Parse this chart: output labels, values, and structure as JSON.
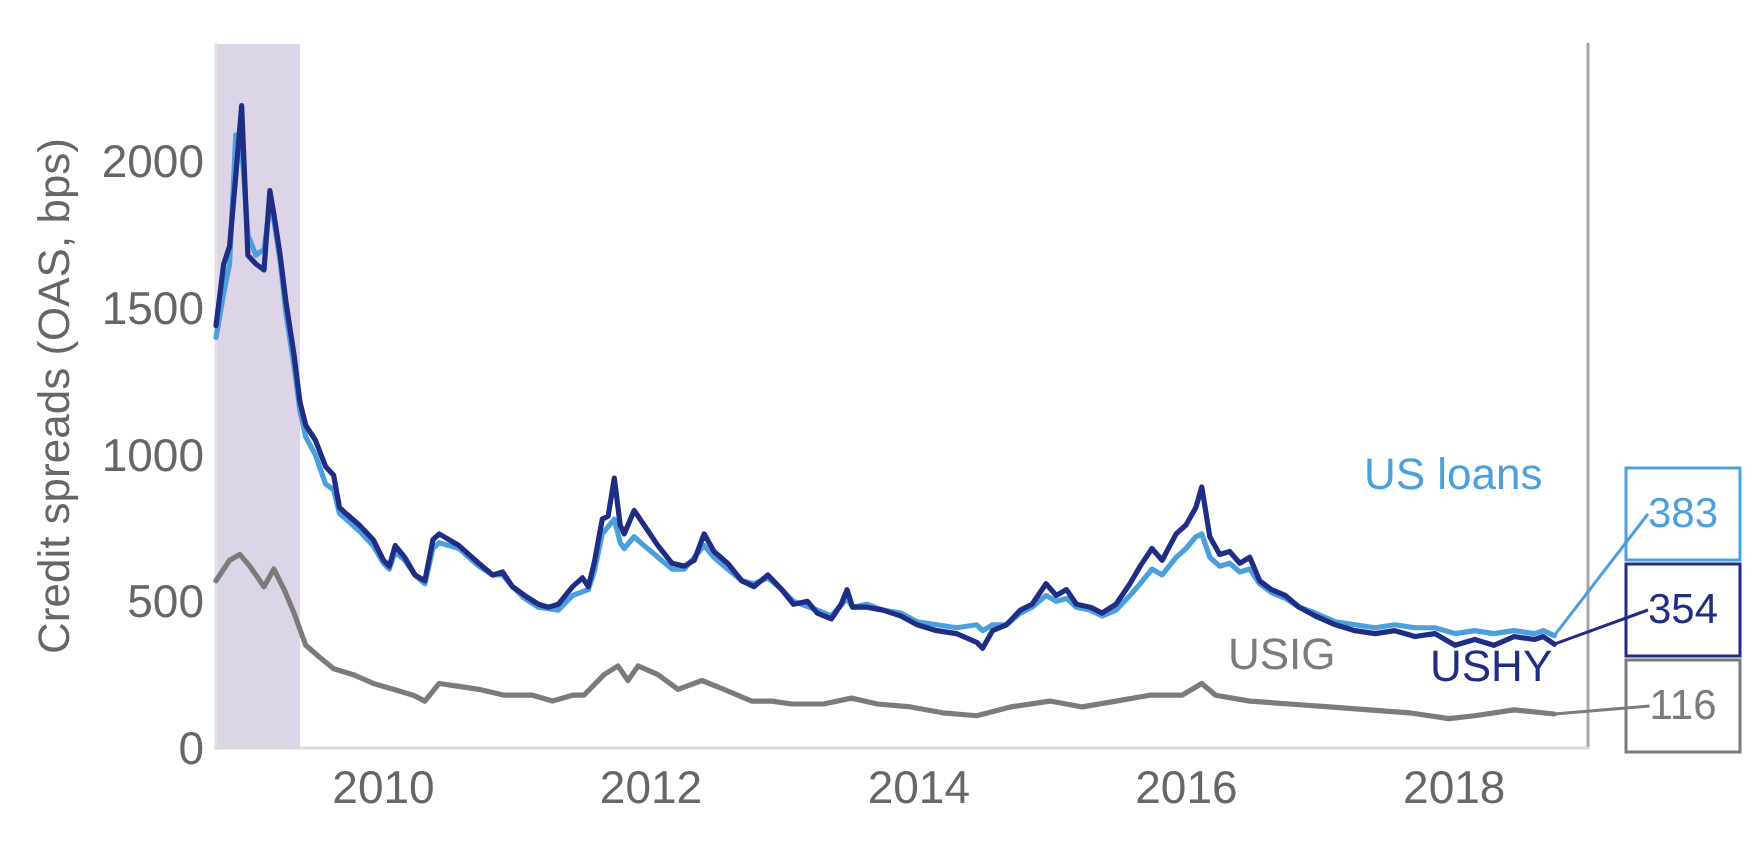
{
  "chart_data": {
    "type": "line",
    "ylabel": "Credit spreads (OAS, bps)",
    "xlim": [
      "2008-10-01",
      "2019-01-01"
    ],
    "xticks": [
      "2010",
      "2012",
      "2014",
      "2016",
      "2018"
    ],
    "ylim": [
      0,
      2400
    ],
    "yticks": [
      0,
      500,
      1000,
      1500,
      2000
    ],
    "bands": [
      {
        "axis": "x",
        "from": "2008-10-01",
        "to": "2009-05-18",
        "color": "#ddd5e7"
      }
    ],
    "series": [
      {
        "name": "US loans",
        "color": "#4a9fdc",
        "x": [
          "2008-10-01",
          "2008-10-22",
          "2008-11-07",
          "2008-11-24",
          "2008-12-10",
          "2008-12-27",
          "2009-01-18",
          "2009-02-09",
          "2009-02-25",
          "2009-03-08",
          "2009-03-25",
          "2009-04-10",
          "2009-05-02",
          "2009-05-18",
          "2009-06-03",
          "2009-06-29",
          "2009-07-27",
          "2009-08-18",
          "2009-09-03",
          "2009-10-27",
          "2009-12-04",
          "2010-01-01",
          "2010-01-17",
          "2010-02-02",
          "2010-02-28",
          "2010-03-28",
          "2010-04-24",
          "2010-05-16",
          "2010-06-02",
          "2010-07-26",
          "2010-08-22",
          "2010-09-18",
          "2010-10-26",
          "2010-11-22",
          "2010-12-19",
          "2011-01-21",
          "2011-02-28",
          "2011-04-23",
          "2011-06-01",
          "2011-07-14",
          "2011-07-30",
          "2011-08-21",
          "2011-09-23",
          "2011-10-09",
          "2011-10-20",
          "2011-11-16",
          "2011-12-13",
          "2012-01-20",
          "2012-02-27",
          "2012-04-01",
          "2012-05-25",
          "2012-06-21",
          "2012-07-28",
          "2012-09-05",
          "2012-10-08",
          "2012-11-15",
          "2012-12-23",
          "2013-01-24",
          "2013-03-30",
          "2013-05-07",
          "2013-06-19",
          "2013-07-04",
          "2013-08-12",
          "2013-09-25",
          "2013-11-13",
          "2013-12-27",
          "2014-02-19",
          "2014-04-14",
          "2014-06-08",
          "2014-06-24",
          "2014-07-21",
          "2014-08-28",
          "2014-10-05",
          "2014-11-06",
          "2014-12-14",
          "2015-01-11",
          "2015-02-08",
          "2015-03-07",
          "2015-04-14",
          "2015-05-16",
          "2015-06-23",
          "2015-07-31",
          "2015-08-28",
          "2015-09-29",
          "2015-10-27",
          "2015-12-04",
          "2015-12-31",
          "2016-01-27",
          "2016-02-12",
          "2016-03-05",
          "2016-04-01",
          "2016-04-28",
          "2016-05-26",
          "2016-06-22",
          "2016-07-19",
          "2016-08-20",
          "2016-09-27",
          "2016-11-04",
          "2016-12-18",
          "2017-02-11",
          "2017-04-05",
          "2017-05-30",
          "2017-07-23",
          "2017-09-16",
          "2017-11-09",
          "2018-01-03",
          "2018-02-26",
          "2018-04-19",
          "2018-06-13",
          "2018-08-08",
          "2018-09-01",
          "2018-10-01"
        ],
        "values": [
          1400,
          1550,
          1650,
          2090,
          2050,
          1750,
          1680,
          1700,
          1850,
          1800,
          1660,
          1480,
          1300,
          1150,
          1060,
          1000,
          900,
          880,
          800,
          740,
          690,
          630,
          610,
          670,
          640,
          590,
          560,
          680,
          700,
          680,
          650,
          620,
          590,
          590,
          550,
          510,
          480,
          470,
          520,
          540,
          600,
          730,
          780,
          700,
          680,
          720,
          690,
          650,
          610,
          610,
          690,
          650,
          610,
          570,
          560,
          580,
          540,
          500,
          470,
          450,
          510,
          480,
          490,
          470,
          460,
          430,
          420,
          410,
          420,
          400,
          420,
          420,
          460,
          480,
          520,
          500,
          510,
          480,
          470,
          450,
          470,
          520,
          560,
          610,
          590,
          650,
          680,
          720,
          730,
          650,
          620,
          630,
          600,
          610,
          560,
          530,
          510,
          480,
          460,
          430,
          420,
          410,
          420,
          410,
          410,
          390,
          400,
          390,
          400,
          390,
          400,
          383
        ],
        "value_labels": [
          null,
          null,
          null,
          null,
          null,
          null,
          null,
          null,
          null,
          null,
          null,
          null,
          null,
          null,
          null,
          null,
          null,
          null,
          null,
          null,
          null,
          null,
          null,
          null,
          null,
          null,
          null,
          null,
          null,
          null,
          null,
          null,
          null,
          null,
          null,
          null,
          null,
          null,
          null,
          null,
          null,
          null,
          null,
          null,
          null,
          null,
          null,
          null,
          null,
          null,
          null,
          null,
          null,
          null,
          null,
          null,
          null,
          null,
          null,
          null,
          null,
          null,
          null,
          null,
          null,
          null,
          null,
          null,
          null,
          null,
          null,
          null,
          null,
          null,
          null,
          null,
          null,
          null,
          null,
          null,
          null,
          null,
          null,
          null,
          null,
          null,
          null,
          null,
          null,
          null,
          null,
          null,
          null,
          null,
          null,
          null,
          null,
          null,
          null,
          null,
          null,
          null,
          null,
          null,
          null,
          null,
          null,
          null,
          null,
          null,
          null,
          "383"
        ]
      },
      {
        "name": "USHY",
        "color": "#1f2d84",
        "x": [
          "2008-10-01",
          "2008-10-22",
          "2008-11-07",
          "2008-11-24",
          "2008-12-10",
          "2008-12-27",
          "2009-01-18",
          "2009-02-09",
          "2009-02-25",
          "2009-03-08",
          "2009-03-25",
          "2009-04-10",
          "2009-05-02",
          "2009-05-18",
          "2009-06-03",
          "2009-06-29",
          "2009-07-27",
          "2009-08-18",
          "2009-09-03",
          "2009-09-20",
          "2009-10-27",
          "2009-12-04",
          "2010-01-01",
          "2010-01-17",
          "2010-02-02",
          "2010-02-28",
          "2010-03-28",
          "2010-04-24",
          "2010-05-16",
          "2010-06-02",
          "2010-06-29",
          "2010-07-26",
          "2010-08-22",
          "2010-09-18",
          "2010-10-26",
          "2010-11-22",
          "2010-12-19",
          "2011-01-21",
          "2011-02-28",
          "2011-03-27",
          "2011-04-23",
          "2011-06-01",
          "2011-06-28",
          "2011-07-14",
          "2011-07-30",
          "2011-08-21",
          "2011-09-06",
          "2011-09-23",
          "2011-10-09",
          "2011-10-20",
          "2011-11-16",
          "2011-12-13",
          "2012-01-20",
          "2012-02-27",
          "2012-04-01",
          "2012-04-28",
          "2012-05-25",
          "2012-06-21",
          "2012-07-28",
          "2012-09-05",
          "2012-10-08",
          "2012-11-15",
          "2012-12-23",
          "2013-01-24",
          "2013-03-03",
          "2013-03-30",
          "2013-05-07",
          "2013-06-03",
          "2013-06-19",
          "2013-07-04",
          "2013-08-12",
          "2013-09-25",
          "2013-11-13",
          "2013-12-27",
          "2014-02-19",
          "2014-04-14",
          "2014-06-08",
          "2014-06-24",
          "2014-07-21",
          "2014-08-28",
          "2014-10-05",
          "2014-11-06",
          "2014-12-14",
          "2015-01-11",
          "2015-02-08",
          "2015-03-07",
          "2015-04-14",
          "2015-05-16",
          "2015-06-23",
          "2015-07-31",
          "2015-08-28",
          "2015-09-29",
          "2015-10-27",
          "2015-12-04",
          "2015-12-31",
          "2016-01-27",
          "2016-02-12",
          "2016-03-05",
          "2016-04-01",
          "2016-04-28",
          "2016-05-26",
          "2016-06-22",
          "2016-07-19",
          "2016-08-20",
          "2016-09-27",
          "2016-11-04",
          "2016-12-18",
          "2017-02-11",
          "2017-04-05",
          "2017-05-30",
          "2017-07-23",
          "2017-09-16",
          "2017-11-09",
          "2018-01-03",
          "2018-02-26",
          "2018-04-19",
          "2018-06-13",
          "2018-08-08",
          "2018-09-01",
          "2018-10-01"
        ],
        "values": [
          1440,
          1650,
          1710,
          1950,
          2190,
          1680,
          1650,
          1630,
          1900,
          1820,
          1680,
          1520,
          1340,
          1180,
          1100,
          1050,
          960,
          930,
          820,
          800,
          760,
          710,
          640,
          620,
          690,
          650,
          590,
          570,
          710,
          730,
          710,
          690,
          660,
          630,
          590,
          600,
          550,
          520,
          490,
          480,
          490,
          550,
          580,
          550,
          630,
          780,
          790,
          920,
          760,
          730,
          810,
          760,
          690,
          630,
          620,
          640,
          730,
          670,
          630,
          570,
          550,
          590,
          540,
          490,
          500,
          460,
          440,
          490,
          540,
          480,
          480,
          470,
          450,
          420,
          400,
          390,
          360,
          340,
          400,
          420,
          470,
          490,
          560,
          520,
          540,
          490,
          480,
          460,
          490,
          560,
          620,
          680,
          640,
          730,
          760,
          820,
          890,
          720,
          660,
          670,
          630,
          650,
          570,
          540,
          520,
          480,
          450,
          420,
          400,
          390,
          400,
          380,
          390,
          350,
          370,
          350,
          380,
          370,
          380,
          354
        ],
        "value_labels": [
          null,
          null,
          null,
          null,
          null,
          null,
          null,
          null,
          null,
          null,
          null,
          null,
          null,
          null,
          null,
          null,
          null,
          null,
          null,
          null,
          null,
          null,
          null,
          null,
          null,
          null,
          null,
          null,
          null,
          null,
          null,
          null,
          null,
          null,
          null,
          null,
          null,
          null,
          null,
          null,
          null,
          null,
          null,
          null,
          null,
          null,
          null,
          null,
          null,
          null,
          null,
          null,
          null,
          null,
          null,
          null,
          null,
          null,
          null,
          null,
          null,
          null,
          null,
          null,
          null,
          null,
          null,
          null,
          null,
          null,
          null,
          null,
          null,
          null,
          null,
          null,
          null,
          null,
          null,
          null,
          null,
          null,
          null,
          null,
          null,
          null,
          null,
          null,
          null,
          null,
          null,
          null,
          null,
          null,
          null,
          null,
          null,
          null,
          null,
          null,
          null,
          null,
          null,
          null,
          null,
          null,
          null,
          null,
          null,
          null,
          null,
          null,
          null,
          null,
          null,
          null,
          null,
          null,
          null,
          "354"
        ]
      },
      {
        "name": "USIG",
        "color": "#7b7b7b",
        "x": [
          "2008-10-01",
          "2008-11-07",
          "2008-12-05",
          "2009-01-01",
          "2009-02-09",
          "2009-03-08",
          "2009-04-05",
          "2009-05-02",
          "2009-06-03",
          "2009-07-10",
          "2009-08-18",
          "2009-10-11",
          "2009-12-04",
          "2010-01-28",
          "2010-03-23",
          "2010-04-24",
          "2010-06-02",
          "2010-07-26",
          "2010-09-18",
          "2010-11-27",
          "2011-02-12",
          "2011-04-07",
          "2011-06-01",
          "2011-07-02",
          "2011-08-26",
          "2011-10-03",
          "2011-10-30",
          "2011-11-27",
          "2012-01-20",
          "2012-03-15",
          "2012-05-19",
          "2012-07-18",
          "2012-10-02",
          "2012-11-25",
          "2013-01-19",
          "2013-04-16",
          "2013-07-01",
          "2013-09-10",
          "2013-12-10",
          "2014-03-07",
          "2014-06-08",
          "2014-09-08",
          "2014-12-25",
          "2015-03-23",
          "2015-06-23",
          "2015-09-23",
          "2015-12-20",
          "2016-02-12",
          "2016-03-21",
          "2016-06-22",
          "2016-10-08",
          "2017-01-25",
          "2017-05-14",
          "2017-08-31",
          "2017-12-17",
          "2018-02-26",
          "2018-06-13",
          "2018-10-01"
        ],
        "values": [
          570,
          640,
          660,
          620,
          550,
          610,
          540,
          460,
          350,
          310,
          270,
          250,
          220,
          200,
          180,
          160,
          220,
          210,
          200,
          180,
          180,
          160,
          180,
          180,
          250,
          280,
          230,
          280,
          250,
          200,
          230,
          200,
          160,
          160,
          150,
          150,
          170,
          150,
          140,
          120,
          110,
          140,
          160,
          140,
          160,
          180,
          180,
          220,
          180,
          160,
          150,
          140,
          130,
          120,
          100,
          110,
          130,
          116
        ],
        "value_labels": [
          null,
          null,
          null,
          null,
          null,
          null,
          null,
          null,
          null,
          null,
          null,
          null,
          null,
          null,
          null,
          null,
          null,
          null,
          null,
          null,
          null,
          null,
          null,
          null,
          null,
          null,
          null,
          null,
          null,
          null,
          null,
          null,
          null,
          null,
          null,
          null,
          null,
          null,
          null,
          null,
          null,
          null,
          null,
          null,
          null,
          null,
          null,
          null,
          null,
          null,
          null,
          null,
          null,
          null,
          null,
          null,
          null,
          "116"
        ]
      }
    ]
  }
}
